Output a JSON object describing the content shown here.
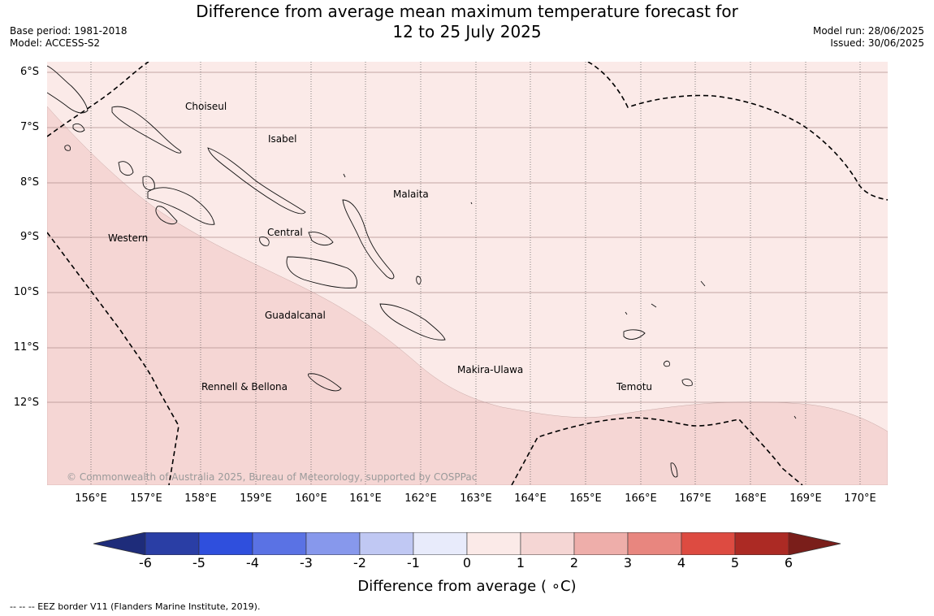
{
  "title": {
    "line1": "Difference from average mean maximum temperature forecast for",
    "line2": "12 to 25 July 2025"
  },
  "meta_left": {
    "base_period": "Base period: 1981-2018",
    "model": "Model: ACCESS-S2"
  },
  "meta_right": {
    "model_run": "Model run: 28/06/2025",
    "issued": "Issued: 30/06/2025"
  },
  "map": {
    "lat_labels": [
      "6°S",
      "7°S",
      "8°S",
      "9°S",
      "10°S",
      "11°S",
      "12°S"
    ],
    "lon_labels": [
      "156°E",
      "157°E",
      "158°E",
      "159°E",
      "160°E",
      "161°E",
      "162°E",
      "163°E",
      "164°E",
      "165°E",
      "166°E",
      "167°E",
      "168°E",
      "169°E",
      "170°E"
    ],
    "places": [
      "Choiseul",
      "Isabel",
      "Malaita",
      "Western",
      "Central",
      "Guadalcanal",
      "Makira-Ulawa",
      "Rennell & Bellona",
      "Temotu"
    ],
    "copyright": "© Commonwealth of Australia 2025, Bureau of Meteorology, supported by COSPPac",
    "shading": [
      {
        "range": "1 to 2",
        "color": "#f5d6d4",
        "region": "south-west"
      },
      {
        "range": "0 to 1",
        "color": "#fbeae8",
        "region": "north-east"
      }
    ]
  },
  "colorbar": {
    "label": "Difference from average ( ∘C)",
    "ticks": [
      "-6",
      "-5",
      "-4",
      "-3",
      "-2",
      "-1",
      "0",
      "1",
      "2",
      "3",
      "4",
      "5",
      "6"
    ],
    "colors": [
      "#2a3ea5",
      "#2f4fdd",
      "#5a72e4",
      "#8798ec",
      "#c0c8f3",
      "#e8ebfb",
      "#fbeae8",
      "#f5d6d4",
      "#eeaeaa",
      "#e8867f",
      "#dd4b41",
      "#ac2a24"
    ],
    "under_color": "#1e2c7a",
    "over_color": "#7a1e1a"
  },
  "legend": {
    "eez": "--  --  -- EEZ border V11 (Flanders Marine Institute, 2019)."
  }
}
